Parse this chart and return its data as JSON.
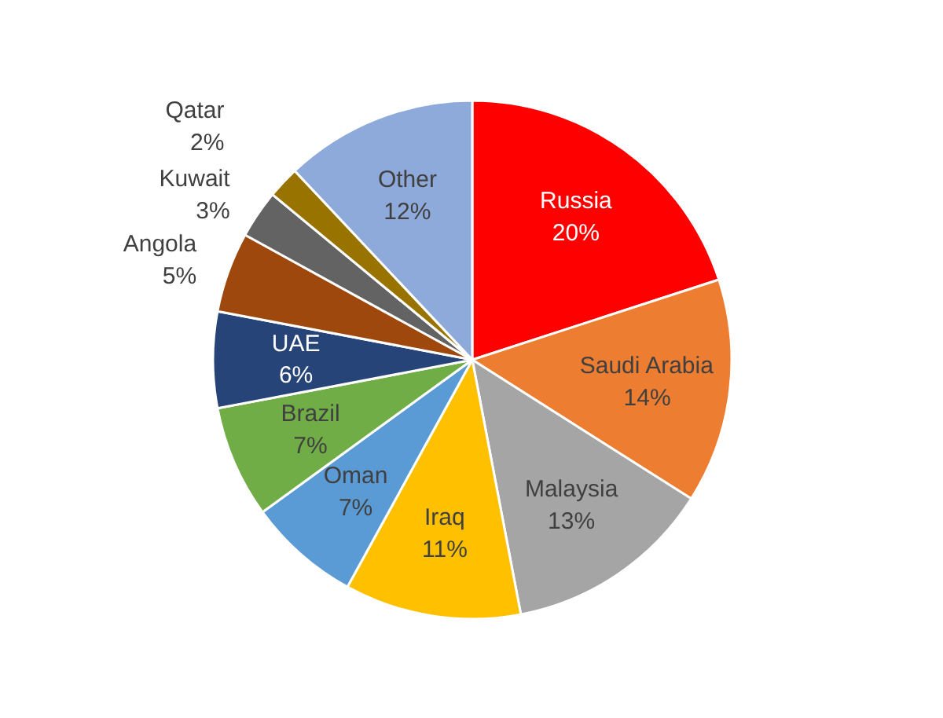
{
  "chart_data": {
    "type": "pie",
    "categories": [
      "Russia",
      "Saudi Arabia",
      "Malaysia",
      "Iraq",
      "Oman",
      "Brazil",
      "UAE",
      "Angola",
      "Kuwait",
      "Qatar",
      "Other"
    ],
    "values": [
      20,
      14,
      13,
      11,
      7,
      7,
      6,
      5,
      3,
      2,
      12
    ],
    "value_labels": [
      "20%",
      "14%",
      "13%",
      "11%",
      "7%",
      "7%",
      "6%",
      "5%",
      "3%",
      "2%",
      "12%"
    ],
    "colors": [
      "#ff0000",
      "#ed7d31",
      "#a5a5a5",
      "#ffc000",
      "#5b9bd5",
      "#70ad47",
      "#264478",
      "#9e480e",
      "#636363",
      "#997300",
      "#8eaadb"
    ]
  }
}
